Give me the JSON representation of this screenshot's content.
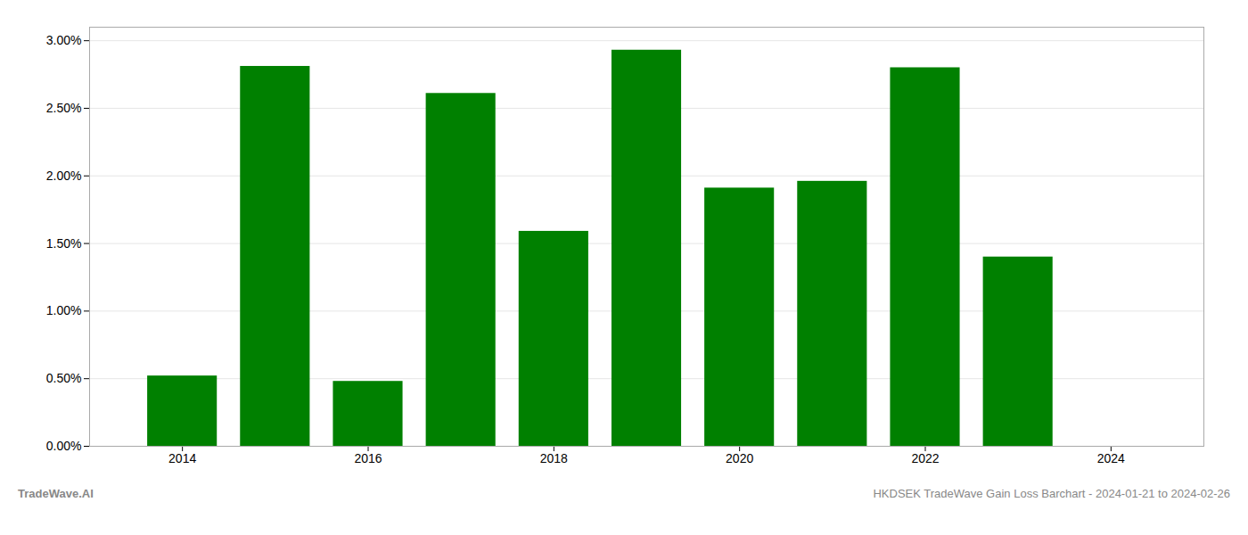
{
  "chart_data": {
    "type": "bar",
    "x": [
      2014,
      2015,
      2016,
      2017,
      2018,
      2019,
      2020,
      2021,
      2022,
      2023
    ],
    "values": [
      0.0052,
      0.0281,
      0.0048,
      0.0261,
      0.0159,
      0.0293,
      0.0191,
      0.0196,
      0.028,
      0.014
    ],
    "color": "#008000",
    "xlim": [
      2013.0,
      2025.0
    ],
    "xticks": [
      2014,
      2016,
      2018,
      2020,
      2022,
      2024
    ],
    "ylim": [
      0,
      0.031
    ],
    "yticks": [
      {
        "value": 0.0,
        "label": "0.00%"
      },
      {
        "value": 0.005,
        "label": "0.50%"
      },
      {
        "value": 0.01,
        "label": "1.00%"
      },
      {
        "value": 0.015,
        "label": "1.50%"
      },
      {
        "value": 0.02,
        "label": "2.00%"
      },
      {
        "value": 0.025,
        "label": "2.50%"
      },
      {
        "value": 0.03,
        "label": "3.00%"
      }
    ],
    "grid": true,
    "annotations": [
      "TradeWave.AI",
      "HKDSEK TradeWave Gain Loss Barchart - 2024-01-21 to 2024-02-26"
    ]
  }
}
